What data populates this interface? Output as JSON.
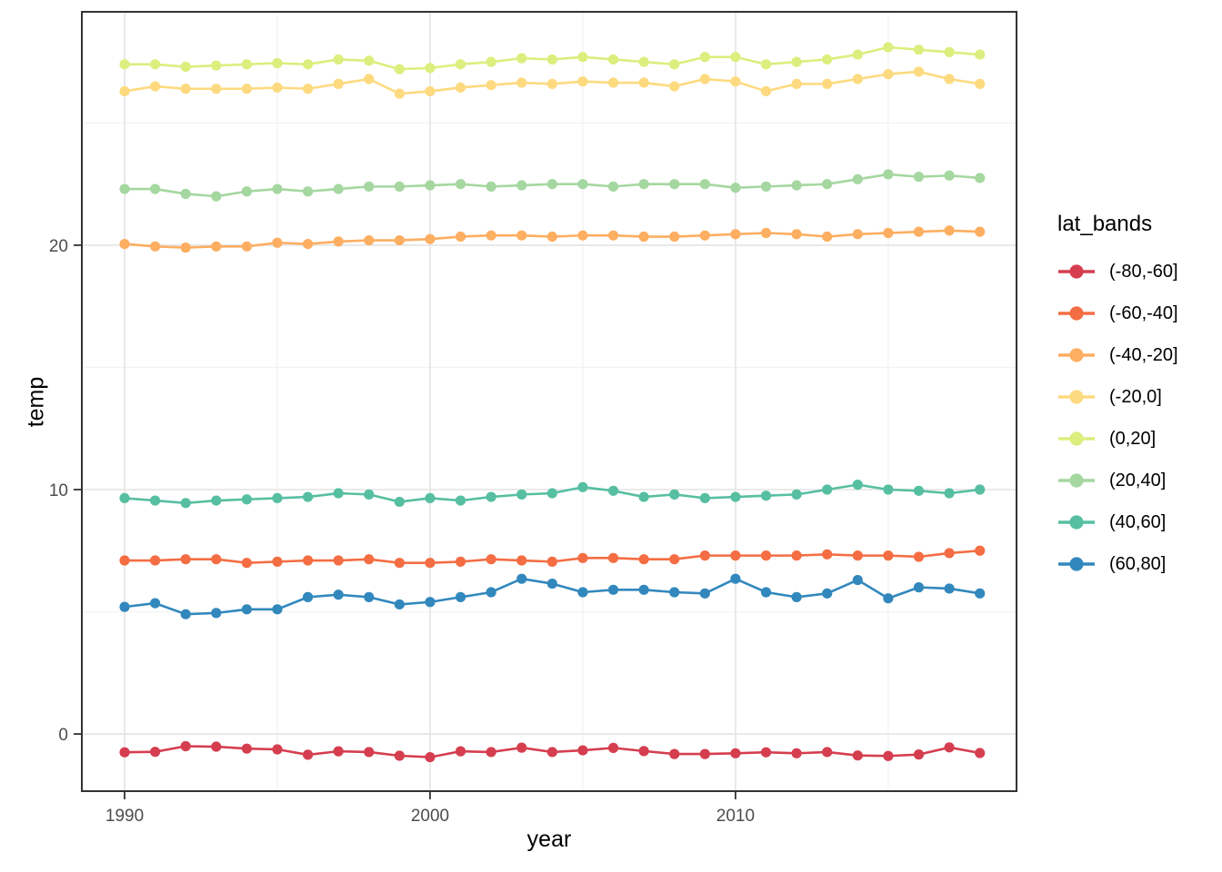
{
  "chart_data": {
    "type": "line",
    "title": "",
    "xlabel": "year",
    "ylabel": "temp",
    "legend_title": "lat_bands",
    "legend_position": "right",
    "grid": "on",
    "xlim": [
      1988.6,
      2019.2
    ],
    "ylim": [
      -2.34,
      29.55
    ],
    "x_ticks": [
      1990,
      2000,
      2010
    ],
    "x_minor_ticks": [
      1995,
      2005,
      2015
    ],
    "y_ticks": [
      0,
      10,
      20
    ],
    "y_minor_ticks": [
      5,
      15,
      25
    ],
    "x": [
      1990,
      1991,
      1992,
      1993,
      1994,
      1995,
      1996,
      1997,
      1998,
      1999,
      2000,
      2001,
      2002,
      2003,
      2004,
      2005,
      2006,
      2007,
      2008,
      2009,
      2010,
      2011,
      2012,
      2013,
      2014,
      2015,
      2016,
      2017,
      2018
    ],
    "series": [
      {
        "name": "(-80,-60]",
        "color": "#d53e4f",
        "values": [
          -0.75,
          -0.73,
          -0.5,
          -0.52,
          -0.6,
          -0.63,
          -0.85,
          -0.71,
          -0.74,
          -0.89,
          -0.95,
          -0.71,
          -0.74,
          -0.56,
          -0.74,
          -0.67,
          -0.57,
          -0.7,
          -0.82,
          -0.82,
          -0.79,
          -0.75,
          -0.79,
          -0.74,
          -0.88,
          -0.9,
          -0.84,
          -0.55,
          -0.78
        ]
      },
      {
        "name": "(-60,-40]",
        "color": "#f46d43",
        "values": [
          7.1,
          7.1,
          7.15,
          7.15,
          7.0,
          7.05,
          7.1,
          7.1,
          7.15,
          7.0,
          7.0,
          7.05,
          7.15,
          7.1,
          7.05,
          7.2,
          7.2,
          7.15,
          7.15,
          7.3,
          7.3,
          7.3,
          7.3,
          7.35,
          7.3,
          7.3,
          7.25,
          7.4,
          7.5
        ]
      },
      {
        "name": "(-40,-20]",
        "color": "#fdae61",
        "values": [
          20.05,
          19.95,
          19.9,
          19.95,
          19.95,
          20.1,
          20.05,
          20.15,
          20.2,
          20.2,
          20.25,
          20.35,
          20.4,
          20.4,
          20.35,
          20.4,
          20.4,
          20.35,
          20.35,
          20.4,
          20.45,
          20.5,
          20.45,
          20.35,
          20.45,
          20.5,
          20.55,
          20.6,
          20.55
        ]
      },
      {
        "name": "(-20,0]",
        "color": "#fdda7f",
        "values": [
          26.3,
          26.5,
          26.4,
          26.4,
          26.4,
          26.45,
          26.4,
          26.6,
          26.8,
          26.2,
          26.3,
          26.45,
          26.55,
          26.65,
          26.6,
          26.7,
          26.65,
          26.65,
          26.5,
          26.8,
          26.7,
          26.3,
          26.6,
          26.6,
          26.8,
          27.0,
          27.1,
          26.8,
          26.6
        ]
      },
      {
        "name": "(0,20]",
        "color": "#dcee7d",
        "values": [
          27.4,
          27.4,
          27.3,
          27.35,
          27.4,
          27.45,
          27.4,
          27.6,
          27.55,
          27.2,
          27.25,
          27.4,
          27.5,
          27.65,
          27.6,
          27.7,
          27.6,
          27.5,
          27.4,
          27.7,
          27.7,
          27.4,
          27.5,
          27.6,
          27.8,
          28.1,
          28.0,
          27.9,
          27.8
        ]
      },
      {
        "name": "(20,40]",
        "color": "#a5d7a0",
        "values": [
          22.3,
          22.3,
          22.1,
          22.0,
          22.2,
          22.3,
          22.2,
          22.3,
          22.4,
          22.4,
          22.45,
          22.5,
          22.4,
          22.45,
          22.5,
          22.5,
          22.4,
          22.5,
          22.5,
          22.5,
          22.35,
          22.4,
          22.45,
          22.5,
          22.7,
          22.9,
          22.8,
          22.85,
          22.75
        ]
      },
      {
        "name": "(40,60]",
        "color": "#57bfa1",
        "values": [
          9.65,
          9.55,
          9.45,
          9.55,
          9.6,
          9.65,
          9.7,
          9.85,
          9.8,
          9.5,
          9.65,
          9.55,
          9.7,
          9.8,
          9.85,
          10.1,
          9.95,
          9.7,
          9.8,
          9.65,
          9.7,
          9.75,
          9.8,
          10.0,
          10.2,
          10.0,
          9.95,
          9.85,
          10.0
        ]
      },
      {
        "name": "(60,80]",
        "color": "#3288bd",
        "values": [
          5.2,
          5.35,
          4.9,
          4.95,
          5.1,
          5.1,
          5.6,
          5.7,
          5.6,
          5.3,
          5.4,
          5.6,
          5.8,
          6.35,
          6.15,
          5.8,
          5.9,
          5.9,
          5.8,
          5.75,
          6.35,
          5.8,
          5.6,
          5.75,
          6.3,
          5.55,
          6.0,
          5.95,
          5.75
        ]
      }
    ]
  },
  "style": {
    "panel_border_color": "#333333",
    "major_grid_color": "#e7e7e7",
    "minor_grid_color": "#f3f3f3",
    "tick_color": "#333333",
    "tick_label_color": "#4d4d4d"
  }
}
